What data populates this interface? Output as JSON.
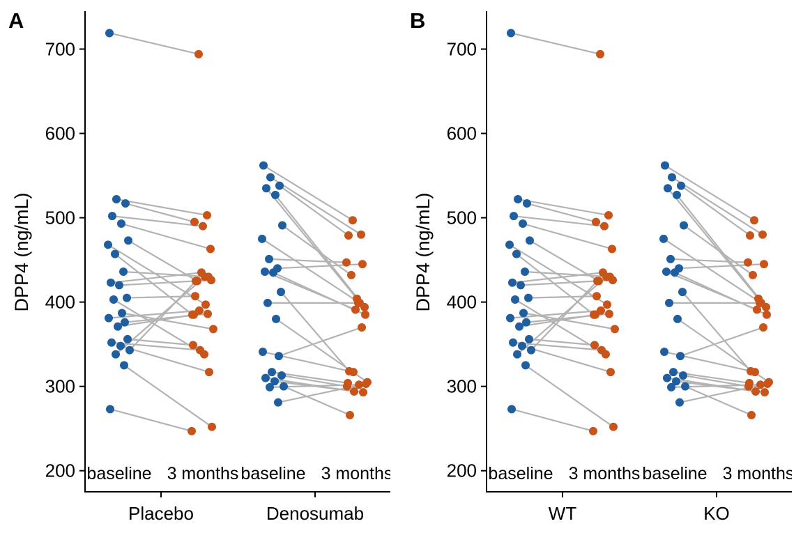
{
  "chart_data": [
    {
      "type": "scatter",
      "panel_tag": "A",
      "ylabel": "DPP4 (ng/mL)",
      "ylim": [
        175,
        745
      ],
      "yticks": [
        200,
        300,
        400,
        500,
        600,
        700
      ],
      "groups": [
        "Placebo",
        "Denosumab"
      ],
      "timepoints": [
        "baseline",
        "3 months"
      ],
      "colors": {
        "baseline": "#1f5fa0",
        "3 months": "#c9541a",
        "line": "#b3b3b3"
      },
      "grid": false,
      "series": [
        {
          "group": "Placebo",
          "pairs": [
            {
              "baseline": 719,
              "3 months": 694
            },
            {
              "baseline": 522,
              "3 months": 503
            },
            {
              "baseline": 517,
              "3 months": 495
            },
            {
              "baseline": 502,
              "3 months": 490
            },
            {
              "baseline": 493,
              "3 months": 463
            },
            {
              "baseline": 473,
              "3 months": 425
            },
            {
              "baseline": 468,
              "3 months": 397
            },
            {
              "baseline": 457,
              "3 months": 385
            },
            {
              "baseline": 436,
              "3 months": 430
            },
            {
              "baseline": 423,
              "3 months": 435
            },
            {
              "baseline": 420,
              "3 months": 426
            },
            {
              "baseline": 405,
              "3 months": 407
            },
            {
              "baseline": 403,
              "3 months": 338
            },
            {
              "baseline": 387,
              "3 months": 368
            },
            {
              "baseline": 381,
              "3 months": 390
            },
            {
              "baseline": 376,
              "3 months": 386
            },
            {
              "baseline": 371,
              "3 months": 385
            },
            {
              "baseline": 356,
              "3 months": 349
            },
            {
              "baseline": 352,
              "3 months": 343
            },
            {
              "baseline": 348,
              "3 months": 317
            },
            {
              "baseline": 343,
              "3 months": 425
            },
            {
              "baseline": 338,
              "3 months": 430
            },
            {
              "baseline": 325,
              "3 months": 252
            },
            {
              "baseline": 273,
              "3 months": 247
            }
          ]
        },
        {
          "group": "Denosumab",
          "pairs": [
            {
              "baseline": 562,
              "3 months": 497
            },
            {
              "baseline": 548,
              "3 months": 480
            },
            {
              "baseline": 538,
              "3 months": 479
            },
            {
              "baseline": 535,
              "3 months": 404
            },
            {
              "baseline": 527,
              "3 months": 394
            },
            {
              "baseline": 491,
              "3 months": 432
            },
            {
              "baseline": 475,
              "3 months": 399
            },
            {
              "baseline": 451,
              "3 months": 447
            },
            {
              "baseline": 440,
              "3 months": 445
            },
            {
              "baseline": 436,
              "3 months": 391
            },
            {
              "baseline": 435,
              "3 months": 385
            },
            {
              "baseline": 412,
              "3 months": 318
            },
            {
              "baseline": 399,
              "3 months": 399
            },
            {
              "baseline": 380,
              "3 months": 305
            },
            {
              "baseline": 341,
              "3 months": 317
            },
            {
              "baseline": 336,
              "3 months": 370
            },
            {
              "baseline": 317,
              "3 months": 304
            },
            {
              "baseline": 313,
              "3 months": 300
            },
            {
              "baseline": 310,
              "3 months": 294
            },
            {
              "baseline": 306,
              "3 months": 293
            },
            {
              "baseline": 300,
              "3 months": 266
            },
            {
              "baseline": 299,
              "3 months": 302
            },
            {
              "baseline": 281,
              "3 months": 303
            }
          ]
        }
      ]
    },
    {
      "type": "scatter",
      "panel_tag": "B",
      "ylabel": "DPP4 (ng/mL)",
      "ylim": [
        175,
        745
      ],
      "yticks": [
        200,
        300,
        400,
        500,
        600,
        700
      ],
      "groups": [
        "WT",
        "KO"
      ],
      "timepoints": [
        "baseline",
        "3 months"
      ],
      "colors": {
        "baseline": "#1f5fa0",
        "3 months": "#c9541a",
        "line": "#b3b3b3"
      },
      "grid": false,
      "series": [
        {
          "group": "WT",
          "pairs": [
            {
              "baseline": 719,
              "3 months": 694
            },
            {
              "baseline": 522,
              "3 months": 503
            },
            {
              "baseline": 517,
              "3 months": 495
            },
            {
              "baseline": 502,
              "3 months": 490
            },
            {
              "baseline": 493,
              "3 months": 463
            },
            {
              "baseline": 473,
              "3 months": 425
            },
            {
              "baseline": 468,
              "3 months": 397
            },
            {
              "baseline": 457,
              "3 months": 385
            },
            {
              "baseline": 436,
              "3 months": 430
            },
            {
              "baseline": 423,
              "3 months": 435
            },
            {
              "baseline": 420,
              "3 months": 426
            },
            {
              "baseline": 405,
              "3 months": 407
            },
            {
              "baseline": 403,
              "3 months": 338
            },
            {
              "baseline": 387,
              "3 months": 368
            },
            {
              "baseline": 381,
              "3 months": 390
            },
            {
              "baseline": 376,
              "3 months": 386
            },
            {
              "baseline": 371,
              "3 months": 385
            },
            {
              "baseline": 356,
              "3 months": 349
            },
            {
              "baseline": 352,
              "3 months": 343
            },
            {
              "baseline": 348,
              "3 months": 317
            },
            {
              "baseline": 343,
              "3 months": 425
            },
            {
              "baseline": 338,
              "3 months": 430
            },
            {
              "baseline": 325,
              "3 months": 252
            },
            {
              "baseline": 273,
              "3 months": 247
            }
          ]
        },
        {
          "group": "KO",
          "pairs": [
            {
              "baseline": 562,
              "3 months": 497
            },
            {
              "baseline": 548,
              "3 months": 480
            },
            {
              "baseline": 538,
              "3 months": 479
            },
            {
              "baseline": 535,
              "3 months": 404
            },
            {
              "baseline": 527,
              "3 months": 394
            },
            {
              "baseline": 491,
              "3 months": 432
            },
            {
              "baseline": 475,
              "3 months": 399
            },
            {
              "baseline": 451,
              "3 months": 447
            },
            {
              "baseline": 440,
              "3 months": 445
            },
            {
              "baseline": 436,
              "3 months": 391
            },
            {
              "baseline": 435,
              "3 months": 385
            },
            {
              "baseline": 412,
              "3 months": 318
            },
            {
              "baseline": 399,
              "3 months": 399
            },
            {
              "baseline": 380,
              "3 months": 305
            },
            {
              "baseline": 341,
              "3 months": 317
            },
            {
              "baseline": 336,
              "3 months": 370
            },
            {
              "baseline": 317,
              "3 months": 304
            },
            {
              "baseline": 313,
              "3 months": 300
            },
            {
              "baseline": 310,
              "3 months": 294
            },
            {
              "baseline": 306,
              "3 months": 293
            },
            {
              "baseline": 300,
              "3 months": 266
            },
            {
              "baseline": 299,
              "3 months": 302
            },
            {
              "baseline": 281,
              "3 months": 303
            }
          ]
        }
      ]
    }
  ]
}
